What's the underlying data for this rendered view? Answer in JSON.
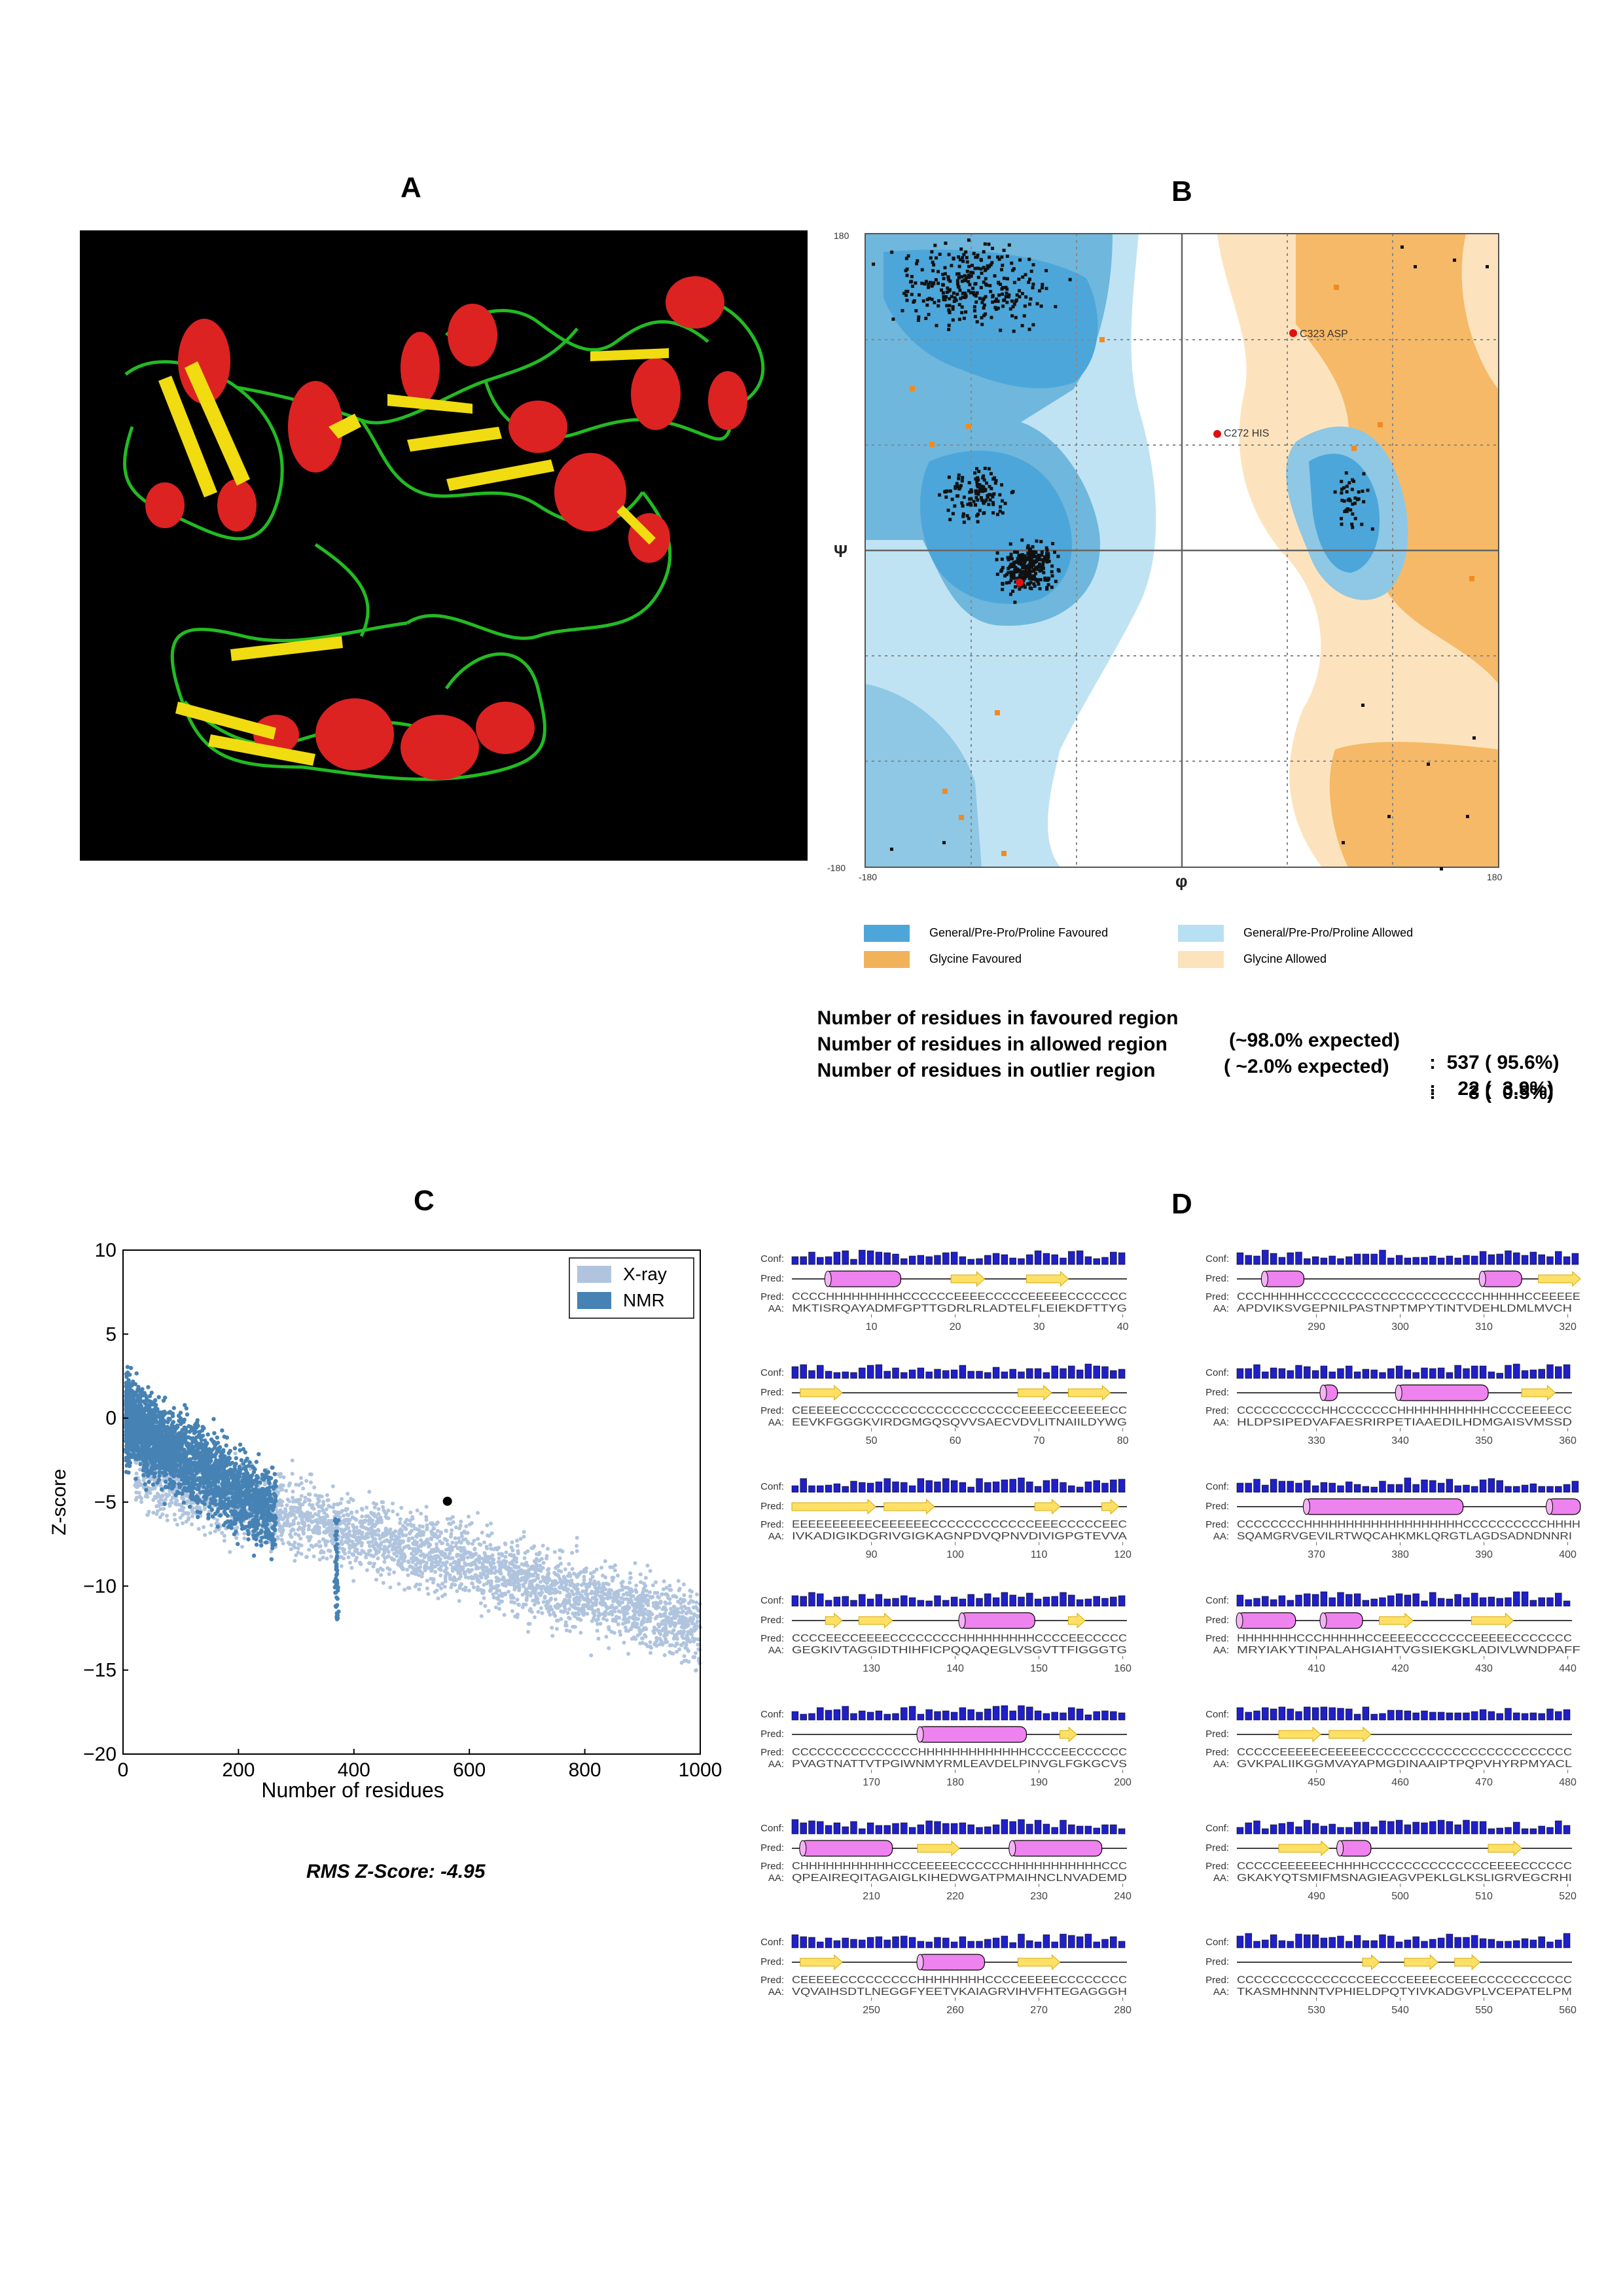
{
  "panels": {
    "a_label": "A",
    "b_label": "B",
    "c_label": "C",
    "d_label": "D"
  },
  "ramachandran": {
    "axis_x_min": "-180",
    "axis_x_max": "180",
    "axis_y_max": "180",
    "axis_y_min": "-180",
    "axis_x_symbol": "φ",
    "axis_y_symbol": "Ψ",
    "outlier_labels": [
      "C323 ASP",
      "C272 HIS"
    ],
    "legend": [
      {
        "label": "General/Pre-Pro/Proline Favoured",
        "color": "#4da6d9"
      },
      {
        "label": "General/Pre-Pro/Proline Allowed",
        "color": "#b7e0f2"
      },
      {
        "label": "Glycine Favoured",
        "color": "#f2b25c"
      },
      {
        "label": "Glycine Allowed",
        "color": "#fde3bd"
      }
    ],
    "stats": [
      {
        "label": "Number of residues in favoured region",
        "expected": "(~98.0% expected)",
        "value": ":  537 ( 95.6%)"
      },
      {
        "label": "Number of residues in allowed region",
        "expected": "( ~2.0% expected)",
        "value": ":    22 (  3.9%)"
      },
      {
        "label": "Number of residues in outlier region",
        "expected": "",
        "value": ":      3 (  0.5%)"
      }
    ]
  },
  "prosa": {
    "rms_label": "RMS Z-Score: -4.95",
    "xlabel": "Number of residues",
    "ylabel": "Z-score",
    "legend": [
      {
        "name": "X-ray",
        "color": "#b0c4de"
      },
      {
        "name": "NMR",
        "color": "#4682b4"
      }
    ]
  },
  "chart_data": {
    "type": "scatter",
    "title": "",
    "xlabel": "Number of residues",
    "ylabel": "Z-score",
    "xlim": [
      0,
      1000
    ],
    "ylim": [
      -20,
      10
    ],
    "x_ticks": [
      0,
      200,
      400,
      600,
      800,
      1000
    ],
    "y_ticks": [
      10,
      5,
      0,
      -5,
      -10,
      -15,
      -20
    ],
    "series": [
      {
        "name": "X-ray",
        "color": "#b0c4de",
        "x": [
          20,
          80,
          150,
          250,
          350,
          450,
          550,
          650,
          750,
          850,
          950,
          1000
        ],
        "y": [
          -3,
          -4,
          -5,
          -6.5,
          -7.5,
          -8.5,
          -9,
          -9.5,
          -10.5,
          -11.5,
          -12,
          -12.5
        ]
      },
      {
        "name": "NMR",
        "color": "#4682b4",
        "x": [
          10,
          50,
          100,
          150,
          200,
          250,
          300,
          370
        ],
        "y": [
          2,
          -1,
          -3,
          -4,
          -5,
          -6,
          -7,
          -10
        ]
      },
      {
        "name": "",
        "color": "#000000",
        "x": [
          562
        ],
        "y": [
          -4.95
        ]
      }
    ]
  },
  "psipred": {
    "row_labels": [
      "Conf:",
      "Pred:",
      "Pred:",
      "AA:"
    ],
    "left": [
      {
        "ss": "CCCCHHHHHHHHHCCCCCCEEEECCCCCEEEEECCCCCCC",
        "aa": "MKTISRQAYADMFGPTTGDRLRLADTELFLEIEKDFTTYG",
        "ticks": [
          "10",
          "20",
          "30",
          "40"
        ]
      },
      {
        "ss": "CEEEEECCCCCCCCCCCCCCCCCCCCCEEEECCEEEEECC",
        "aa": "EEVKFGGGKVIRDGMGQSQVVSAECVDVLITNAIILDYWG",
        "ticks": [
          "50",
          "60",
          "70",
          "80"
        ]
      },
      {
        "ss": "EEEEEEEEEECEEEEEECCCCCCCCCCCCEEECCCCCEEC",
        "aa": "IVKADIGIKDGRIVGIGKAGNPDVQPNVDIVIGPGTEVVA",
        "ticks": [
          "90",
          "100",
          "110",
          "120"
        ]
      },
      {
        "ss": "CCCCEECCEEEECCCCCCCCHHHHHHHHHCCCCEECCCCC",
        "aa": "GEGKIVTAGGIDTHIHFICPQQAQEGLVSGVTTFIGGGTG",
        "ticks": [
          "130",
          "140",
          "150",
          "160"
        ]
      },
      {
        "ss": "CCCCCCCCCCCCCCCHHHHHHHHHHHHHCCCCEECCCCCC",
        "aa": "PVAGTNATTVTPGIWNMYRMLEAVDELPINVGLFGKGCVS",
        "ticks": [
          "170",
          "180",
          "190",
          "200"
        ]
      },
      {
        "ss": "CHHHHHHHHHHHCCCEEEEECCCCCCHHHHHHHHHHHCCC",
        "aa": "QPEAIREQITAGAIGLKIHEDWGATPMAIHNCLNVADEMD",
        "ticks": [
          "210",
          "220",
          "230",
          "240"
        ]
      },
      {
        "ss": "CEEEEECCCCCCCCCHHHHHHHHCCCCEEEEECCCCCCCC",
        "aa": "VQVAIHSDTLNEGGFYEETVKAIAGRVIHVFHTEGAGGGH",
        "ticks": [
          "250",
          "260",
          "270",
          "280"
        ]
      }
    ],
    "right": [
      {
        "ss": "CCCHHHHHCCCCCCCCCCCCCCCCCCCCCHHHHHCCEEEEE",
        "aa": "APDVIKSVGEPNILPASTNPTMPYTINTVDEHLDMLMVCH",
        "ticks": [
          "290",
          "300",
          "310",
          "320"
        ]
      },
      {
        "ss": "CCCCCCCCCCHHCCCCCCCHHHHHHHHHHHCCCCEEEECC",
        "aa": "HLDPSIPEDVAFAESRIRPETIAAEDILHDMGAISVMSSD",
        "ticks": [
          "330",
          "340",
          "350",
          "360"
        ]
      },
      {
        "ss": "CCCCCCCCHHHHHHHHHHHHHHHHHHHCCCCCCCCCCHHHH",
        "aa": "SQAMGRVGEVILRTWQCAHKMKLQRGTLAGDSADNDNNRI",
        "ticks": [
          "370",
          "380",
          "390",
          "400"
        ]
      },
      {
        "ss": "HHHHHHHCCCHHHHHCCEEEECCCCCCCEEEEECCCCCCC",
        "aa": "MRYIAKYTINPALAHGIAHTVGSIEKGKLADIVLWNDPAFF",
        "ticks": [
          "410",
          "420",
          "430",
          "440"
        ]
      },
      {
        "ss": "CCCCCEEEEECEEEEECCCCCCCCCCCCCCCCCCCCCCCC",
        "aa": "GVKPALIIKGGMVAYAPMGDINAAIPTPQPVHYRPMYACL",
        "ticks": [
          "450",
          "460",
          "470",
          "480"
        ]
      },
      {
        "ss": "CCCCCEEEEEECHHHHCCCCCCCCCCCCCCEEEECCCCCC",
        "aa": "GKAKYQTSMIFMSNAGIEAGVPEKLGLKSLIGRVEGCRHI",
        "ticks": [
          "490",
          "500",
          "510",
          "520"
        ]
      },
      {
        "ss": "CCCCCCCCCCCCCCCEECCCEEEECCEEECCCCCCCCCCC",
        "aa": "TKASMHNNNTVPHIELDPQTYIVKADGVPLVCEPATELPM",
        "ticks": [
          "530",
          "540",
          "550",
          "560"
        ]
      }
    ]
  }
}
